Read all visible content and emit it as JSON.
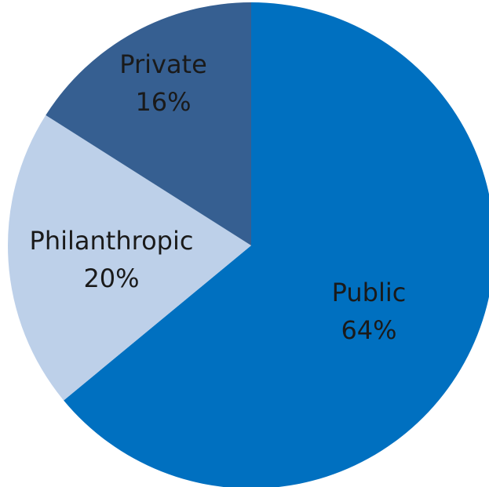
{
  "chart_data": {
    "type": "pie",
    "title": "",
    "start_angle_deg": 0,
    "direction": "clockwise",
    "slices": [
      {
        "label": "Public",
        "value": 64,
        "value_label": "64%",
        "color": "#0070c0"
      },
      {
        "label": "Philanthropic",
        "value": 20,
        "value_label": "20%",
        "color": "#bdd0e9"
      },
      {
        "label": "Private",
        "value": 16,
        "value_label": "16%",
        "color": "#365f91"
      }
    ],
    "legend": "none",
    "data_labels": "inside"
  }
}
